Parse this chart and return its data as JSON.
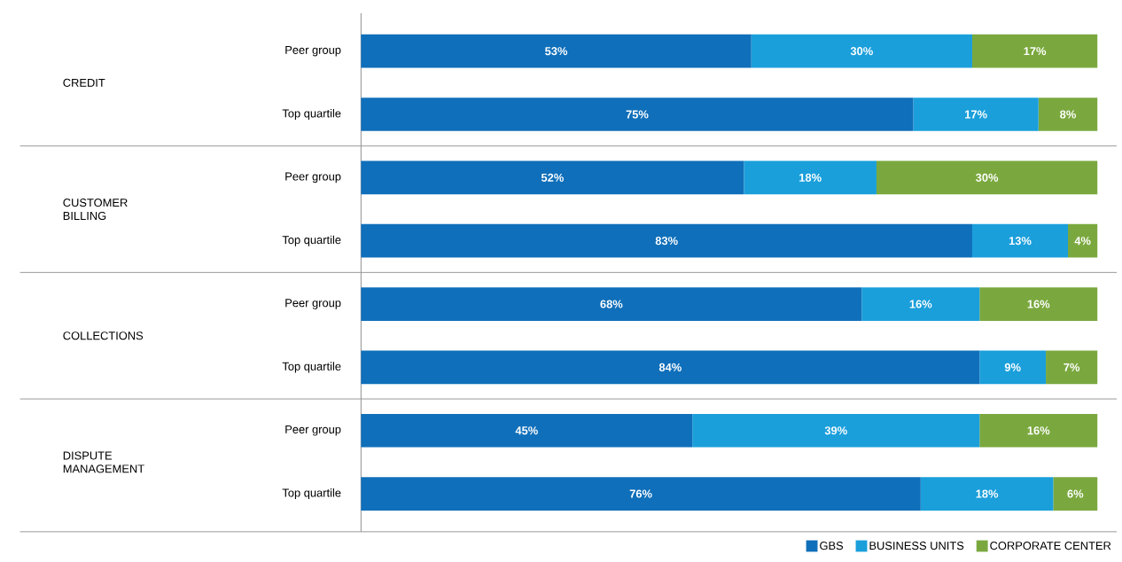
{
  "chart_data": {
    "type": "bar",
    "orientation": "horizontal",
    "stacked": true,
    "categories": [
      "Peer group",
      "Top quartile",
      "Peer group",
      "Top quartile",
      "Peer group",
      "Top quartile",
      "Peer group",
      "Top quartile"
    ],
    "series": [
      {
        "name": "GBS",
        "color": "#0f6fba",
        "values": [
          53,
          75,
          52,
          83,
          68,
          84,
          45,
          76
        ],
        "value_labels": [
          "53%",
          "75%",
          "52%",
          "83%",
          "68%",
          "84%",
          "45%",
          "76%"
        ]
      },
      {
        "name": "BUSINESS UNITS",
        "color": "#1a9fdb",
        "values": [
          30,
          17,
          18,
          13,
          16,
          9,
          39,
          18
        ],
        "value_labels": [
          "30%",
          "17%",
          "18%",
          "13%",
          "16%",
          "9%",
          "39%",
          "18%"
        ]
      },
      {
        "name": "CORPORATE CENTER",
        "color": "#7aa83e",
        "values": [
          17,
          8,
          30,
          4,
          16,
          7,
          16,
          6
        ],
        "value_labels": [
          "17%",
          "8%",
          "30%",
          "4%",
          "16%",
          "7%",
          "16%",
          "6%"
        ]
      }
    ],
    "xlim": [
      0,
      100
    ],
    "annotations": [
      "CREDIT",
      "CUSTOMER BILLING",
      "COLLECTIONS",
      "DISPUTE MANAGEMENT"
    ],
    "legend": "bottom right",
    "tick_labels": "y"
  }
}
